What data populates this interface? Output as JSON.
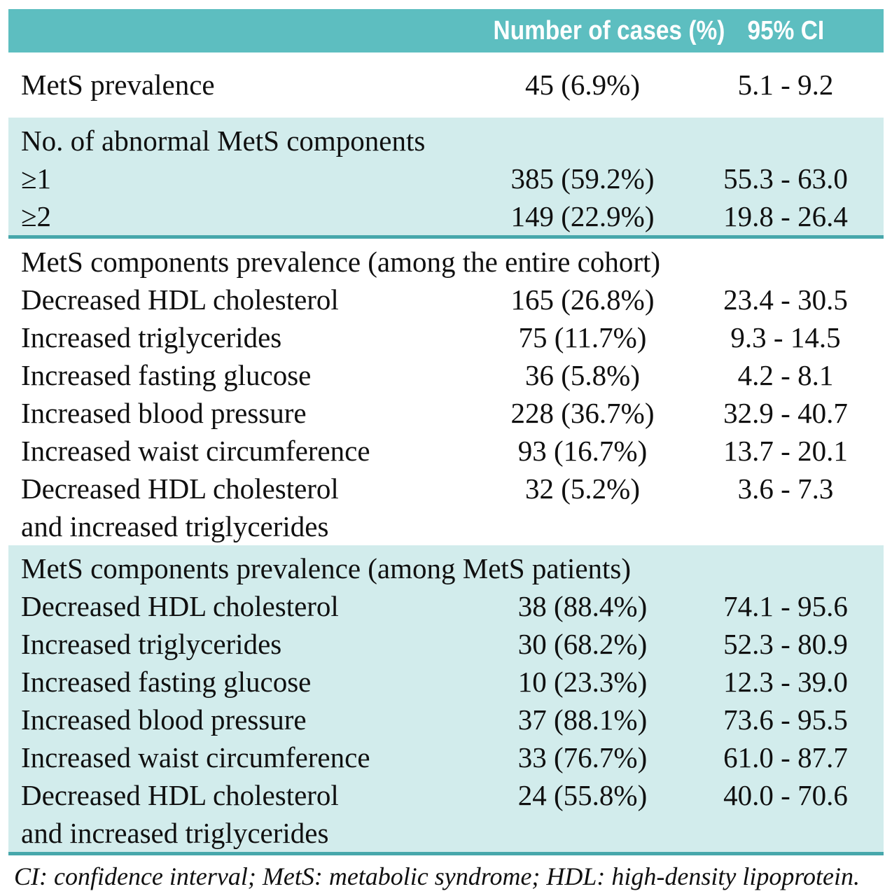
{
  "colors": {
    "header_band": "#5dbec0",
    "section_band": "#d2ecec",
    "separator_line": "#47a7ab",
    "header_text": "#ffffff",
    "body_text": "#101010"
  },
  "table": {
    "col_headers": {
      "cases": "Number of cases (%)",
      "ci": "95% CI"
    },
    "sections": [
      {
        "rows": [
          {
            "label": "MetS prevalence",
            "cases": "45 (6.9%)",
            "ci": "5.1 - 9.2"
          }
        ]
      },
      {
        "header": "No. of abnormal MetS components",
        "rows": [
          {
            "label": "≥1",
            "cases": "385 (59.2%)",
            "ci": "55.3 - 63.0"
          },
          {
            "label": "≥2",
            "cases": "149 (22.9%)",
            "ci": "19.8 - 26.4"
          }
        ]
      },
      {
        "header": "MetS components prevalence (among the entire cohort)",
        "rows": [
          {
            "label": "Decreased HDL cholesterol",
            "cases": "165 (26.8%)",
            "ci": "23.4 - 30.5"
          },
          {
            "label": "Increased triglycerides",
            "cases": "75 (11.7%)",
            "ci": "9.3 - 14.5"
          },
          {
            "label": "Increased fasting glucose",
            "cases": "36 (5.8%)",
            "ci": "4.2 - 8.1"
          },
          {
            "label": "Increased blood pressure",
            "cases": "228 (36.7%)",
            "ci": "32.9 - 40.7"
          },
          {
            "label": "Increased waist circumference",
            "cases": "93 (16.7%)",
            "ci": "13.7 - 20.1"
          },
          {
            "label": "Decreased HDL cholesterol",
            "label2": "and increased triglycerides",
            "cases": "32 (5.2%)",
            "ci": "3.6 - 7.3"
          }
        ]
      },
      {
        "header": "MetS components prevalence (among MetS patients)",
        "rows": [
          {
            "label": "Decreased HDL cholesterol",
            "cases": "38 (88.4%)",
            "ci": "74.1 - 95.6"
          },
          {
            "label": "Increased triglycerides",
            "cases": "30 (68.2%)",
            "ci": "52.3 - 80.9"
          },
          {
            "label": "Increased fasting glucose",
            "cases": "10 (23.3%)",
            "ci": "12.3 - 39.0"
          },
          {
            "label": "Increased blood pressure",
            "cases": "37 (88.1%)",
            "ci": "73.6 - 95.5"
          },
          {
            "label": "Increased waist circumference",
            "cases": "33 (76.7%)",
            "ci": "61.0 - 87.7"
          },
          {
            "label": "Decreased HDL cholesterol",
            "label2": "and increased triglycerides",
            "cases": "24 (55.8%)",
            "ci": "40.0 - 70.6"
          }
        ]
      }
    ],
    "footnote": "CI: confidence interval; MetS: metabolic syndrome; HDL: high-density lipoprotein."
  }
}
